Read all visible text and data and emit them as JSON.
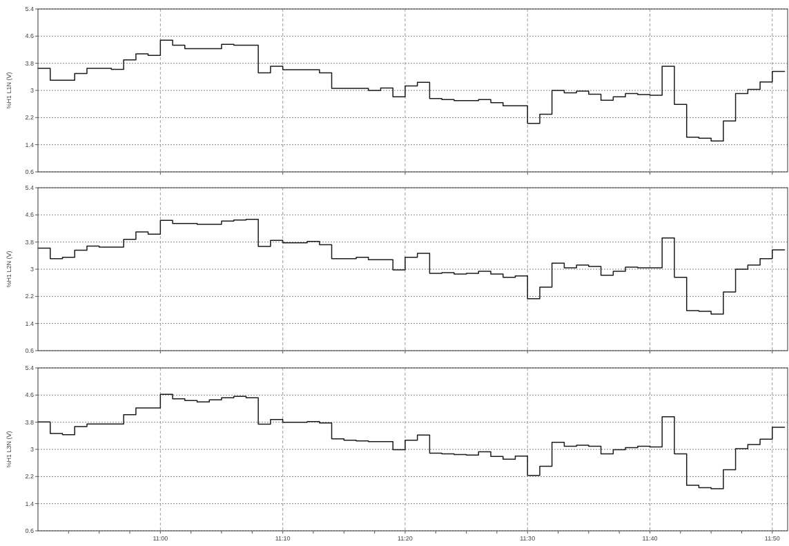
{
  "chart_data": [
    {
      "type": "step",
      "ylabel": "%H1 L1N (V)",
      "tick_labels": "y",
      "grid": true,
      "x": [
        10.8333,
        10.85,
        10.8667,
        10.8833,
        10.9,
        10.9167,
        10.9333,
        10.95,
        10.9667,
        10.9833,
        11,
        11.0167,
        11.0333,
        11.05,
        11.0667,
        11.0833,
        11.1,
        11.1167,
        11.1333,
        11.15,
        11.1667,
        11.1833,
        11.2,
        11.2167,
        11.2333,
        11.25,
        11.2667,
        11.2833,
        11.3,
        11.3167,
        11.3333,
        11.35,
        11.3667,
        11.3833,
        11.4,
        11.4167,
        11.4333,
        11.45,
        11.4667,
        11.4833,
        11.5,
        11.5167,
        11.5333,
        11.55,
        11.5667,
        11.5833,
        11.6,
        11.6167,
        11.6333,
        11.65,
        11.6667,
        11.6833,
        11.7,
        11.7167,
        11.7333,
        11.75,
        11.7667,
        11.7833,
        11.8,
        11.8167,
        11.8333,
        11.85
      ],
      "series": [
        {
          "color": "#1a1a1a",
          "values": [
            3.65,
            3.3,
            3.3,
            3.5,
            3.65,
            3.65,
            3.62,
            3.9,
            4.08,
            4.03,
            4.48,
            4.33,
            4.23,
            4.23,
            4.23,
            4.36,
            4.33,
            4.33,
            3.52,
            3.71,
            3.61,
            3.61,
            3.61,
            3.52,
            3.06,
            3.06,
            3.06,
            3.0,
            3.07,
            2.81,
            3.13,
            3.24,
            2.76,
            2.73,
            2.7,
            2.7,
            2.73,
            2.64,
            2.55,
            2.55,
            2.03,
            2.3,
            3.0,
            2.93,
            2.98,
            2.89,
            2.71,
            2.81,
            2.91,
            2.88,
            2.86,
            3.71,
            2.59,
            1.62,
            1.59,
            1.51,
            2.1,
            2.91,
            3.03,
            3.25,
            3.56,
            3.56
          ]
        }
      ],
      "xlim": [
        10.8333,
        11.8542
      ],
      "xticks": [
        {
          "value": 11,
          "label": null
        },
        {
          "value": 11.1667,
          "label": null
        },
        {
          "value": 11.3333,
          "label": null
        },
        {
          "value": 11.5,
          "label": null
        },
        {
          "value": 11.6667,
          "label": null
        },
        {
          "value": 11.8333,
          "label": null
        }
      ],
      "ylim": [
        0.6,
        5.4
      ],
      "yticks": [
        0.6,
        1.4,
        2.2,
        3,
        3.8,
        4.6,
        5.4
      ]
    },
    {
      "type": "step",
      "ylabel": "%H1 L2N (V)",
      "tick_labels": "y",
      "grid": true,
      "x": [
        10.8333,
        10.85,
        10.8667,
        10.8833,
        10.9,
        10.9167,
        10.9333,
        10.95,
        10.9667,
        10.9833,
        11,
        11.0167,
        11.0333,
        11.05,
        11.0667,
        11.0833,
        11.1,
        11.1167,
        11.1333,
        11.15,
        11.1667,
        11.1833,
        11.2,
        11.2167,
        11.2333,
        11.25,
        11.2667,
        11.2833,
        11.3,
        11.3167,
        11.3333,
        11.35,
        11.3667,
        11.3833,
        11.4,
        11.4167,
        11.4333,
        11.45,
        11.4667,
        11.4833,
        11.5,
        11.5167,
        11.5333,
        11.55,
        11.5667,
        11.5833,
        11.6,
        11.6167,
        11.6333,
        11.65,
        11.6667,
        11.6833,
        11.7,
        11.7167,
        11.7333,
        11.75,
        11.7667,
        11.7833,
        11.8,
        11.8167,
        11.8333,
        11.85
      ],
      "series": [
        {
          "color": "#1a1a1a",
          "values": [
            3.62,
            3.31,
            3.35,
            3.56,
            3.68,
            3.65,
            3.65,
            3.88,
            4.1,
            4.03,
            4.44,
            4.35,
            4.35,
            4.32,
            4.32,
            4.42,
            4.45,
            4.47,
            3.67,
            3.85,
            3.78,
            3.78,
            3.82,
            3.72,
            3.31,
            3.31,
            3.35,
            3.28,
            3.28,
            2.98,
            3.35,
            3.47,
            2.88,
            2.9,
            2.86,
            2.88,
            2.94,
            2.86,
            2.76,
            2.8,
            2.13,
            2.47,
            3.18,
            3.04,
            3.12,
            3.08,
            2.82,
            2.94,
            3.06,
            3.04,
            3.04,
            3.92,
            2.76,
            1.78,
            1.76,
            1.68,
            2.33,
            3.0,
            3.12,
            3.31,
            3.57,
            3.57
          ]
        }
      ],
      "xlim": [
        10.8333,
        11.8542
      ],
      "xticks": [
        {
          "value": 11,
          "label": null
        },
        {
          "value": 11.1667,
          "label": null
        },
        {
          "value": 11.3333,
          "label": null
        },
        {
          "value": 11.5,
          "label": null
        },
        {
          "value": 11.6667,
          "label": null
        },
        {
          "value": 11.8333,
          "label": null
        }
      ],
      "ylim": [
        0.6,
        5.4
      ],
      "yticks": [
        0.6,
        1.4,
        2.2,
        3,
        3.8,
        4.6,
        5.4
      ]
    },
    {
      "type": "step",
      "ylabel": "%H1 L3N (V)",
      "grid": true,
      "x": [
        10.8333,
        10.85,
        10.8667,
        10.8833,
        10.9,
        10.9167,
        10.9333,
        10.95,
        10.9667,
        10.9833,
        11,
        11.0167,
        11.0333,
        11.05,
        11.0667,
        11.0833,
        11.1,
        11.1167,
        11.1333,
        11.15,
        11.1667,
        11.1833,
        11.2,
        11.2167,
        11.2333,
        11.25,
        11.2667,
        11.2833,
        11.3,
        11.3167,
        11.3333,
        11.35,
        11.3667,
        11.3833,
        11.4,
        11.4167,
        11.4333,
        11.45,
        11.4667,
        11.4833,
        11.5,
        11.5167,
        11.5333,
        11.55,
        11.5667,
        11.5833,
        11.6,
        11.6167,
        11.6333,
        11.65,
        11.6667,
        11.6833,
        11.7,
        11.7167,
        11.7333,
        11.75,
        11.7667,
        11.7833,
        11.8,
        11.8167,
        11.8333,
        11.85
      ],
      "series": [
        {
          "color": "#1a1a1a",
          "values": [
            3.81,
            3.47,
            3.43,
            3.67,
            3.75,
            3.75,
            3.75,
            4.02,
            4.22,
            4.22,
            4.62,
            4.49,
            4.44,
            4.4,
            4.46,
            4.52,
            4.56,
            4.52,
            3.74,
            3.88,
            3.8,
            3.8,
            3.82,
            3.78,
            3.31,
            3.27,
            3.25,
            3.23,
            3.23,
            2.99,
            3.27,
            3.42,
            2.89,
            2.87,
            2.85,
            2.83,
            2.93,
            2.79,
            2.71,
            2.8,
            2.23,
            2.5,
            3.21,
            3.09,
            3.12,
            3.09,
            2.87,
            2.99,
            3.05,
            3.09,
            3.07,
            3.96,
            2.87,
            1.94,
            1.87,
            1.84,
            2.4,
            3.02,
            3.14,
            3.3,
            3.65,
            3.65
          ]
        }
      ],
      "xlim": [
        10.8333,
        11.8542
      ],
      "xticks": [
        {
          "value": 10.875,
          "label": null
        },
        {
          "value": 10.9167,
          "label": null
        },
        {
          "value": 10.9583,
          "label": null
        },
        {
          "value": 11,
          "label": "11:00"
        },
        {
          "value": 11.0417,
          "label": null
        },
        {
          "value": 11.0833,
          "label": null
        },
        {
          "value": 11.125,
          "label": null
        },
        {
          "value": 11.1667,
          "label": "11:10"
        },
        {
          "value": 11.2083,
          "label": null
        },
        {
          "value": 11.25,
          "label": null
        },
        {
          "value": 11.2917,
          "label": null
        },
        {
          "value": 11.3333,
          "label": "11:20"
        },
        {
          "value": 11.375,
          "label": null
        },
        {
          "value": 11.4167,
          "label": null
        },
        {
          "value": 11.4583,
          "label": null
        },
        {
          "value": 11.5,
          "label": "11:30"
        },
        {
          "value": 11.5417,
          "label": null
        },
        {
          "value": 11.5833,
          "label": null
        },
        {
          "value": 11.625,
          "label": null
        },
        {
          "value": 11.6667,
          "label": "11:40"
        },
        {
          "value": 11.7083,
          "label": null
        },
        {
          "value": 11.75,
          "label": null
        },
        {
          "value": 11.7917,
          "label": null
        },
        {
          "value": 11.8333,
          "label": "11:50"
        }
      ],
      "ylim": [
        0.6,
        5.4
      ],
      "yticks": [
        0.6,
        1.4,
        2.2,
        3,
        3.8,
        4.6,
        5.4
      ]
    }
  ]
}
